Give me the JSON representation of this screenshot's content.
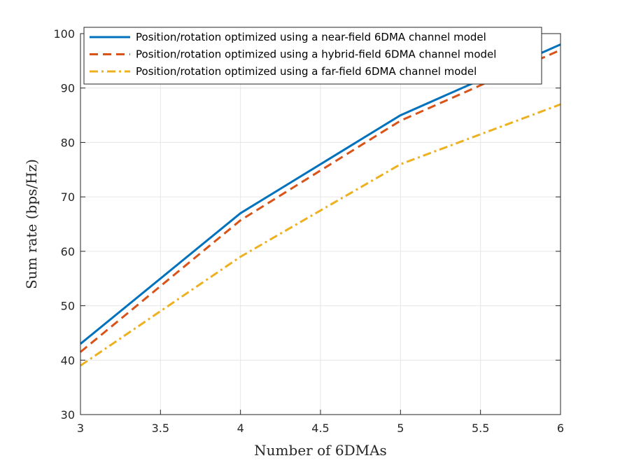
{
  "chart_data": {
    "type": "line",
    "title": "",
    "xlabel": "Number of 6DMAs",
    "ylabel": "Sum rate (bps/Hz)",
    "xlim": [
      3,
      6
    ],
    "ylim": [
      30,
      100
    ],
    "xticks": [
      3,
      3.5,
      4,
      4.5,
      5,
      5.5,
      6
    ],
    "yticks": [
      30,
      40,
      50,
      60,
      70,
      80,
      90,
      100
    ],
    "xtick_labels": [
      "3",
      "3.5",
      "4",
      "4.5",
      "5",
      "5.5",
      "6"
    ],
    "ytick_labels": [
      "30",
      "40",
      "50",
      "60",
      "70",
      "80",
      "90",
      "100"
    ],
    "grid": true,
    "legend_position": "top-left",
    "x": [
      3,
      4,
      5,
      6
    ],
    "series": [
      {
        "name": "Position/rotation optimized using a near-field 6DMA channel model",
        "values": [
          43,
          67,
          85,
          98
        ],
        "color": "#0072BD",
        "style": "solid"
      },
      {
        "name": "Position/rotation optimized using a hybrid-field 6DMA channel model",
        "values": [
          41.5,
          65.7,
          84,
          97
        ],
        "color": "#D95319",
        "style": "dashed"
      },
      {
        "name": "Position/rotation optimized using a far-field 6DMA channel model",
        "values": [
          39,
          59,
          76,
          87
        ],
        "color": "#EDB120",
        "style": "dashdot"
      }
    ]
  }
}
